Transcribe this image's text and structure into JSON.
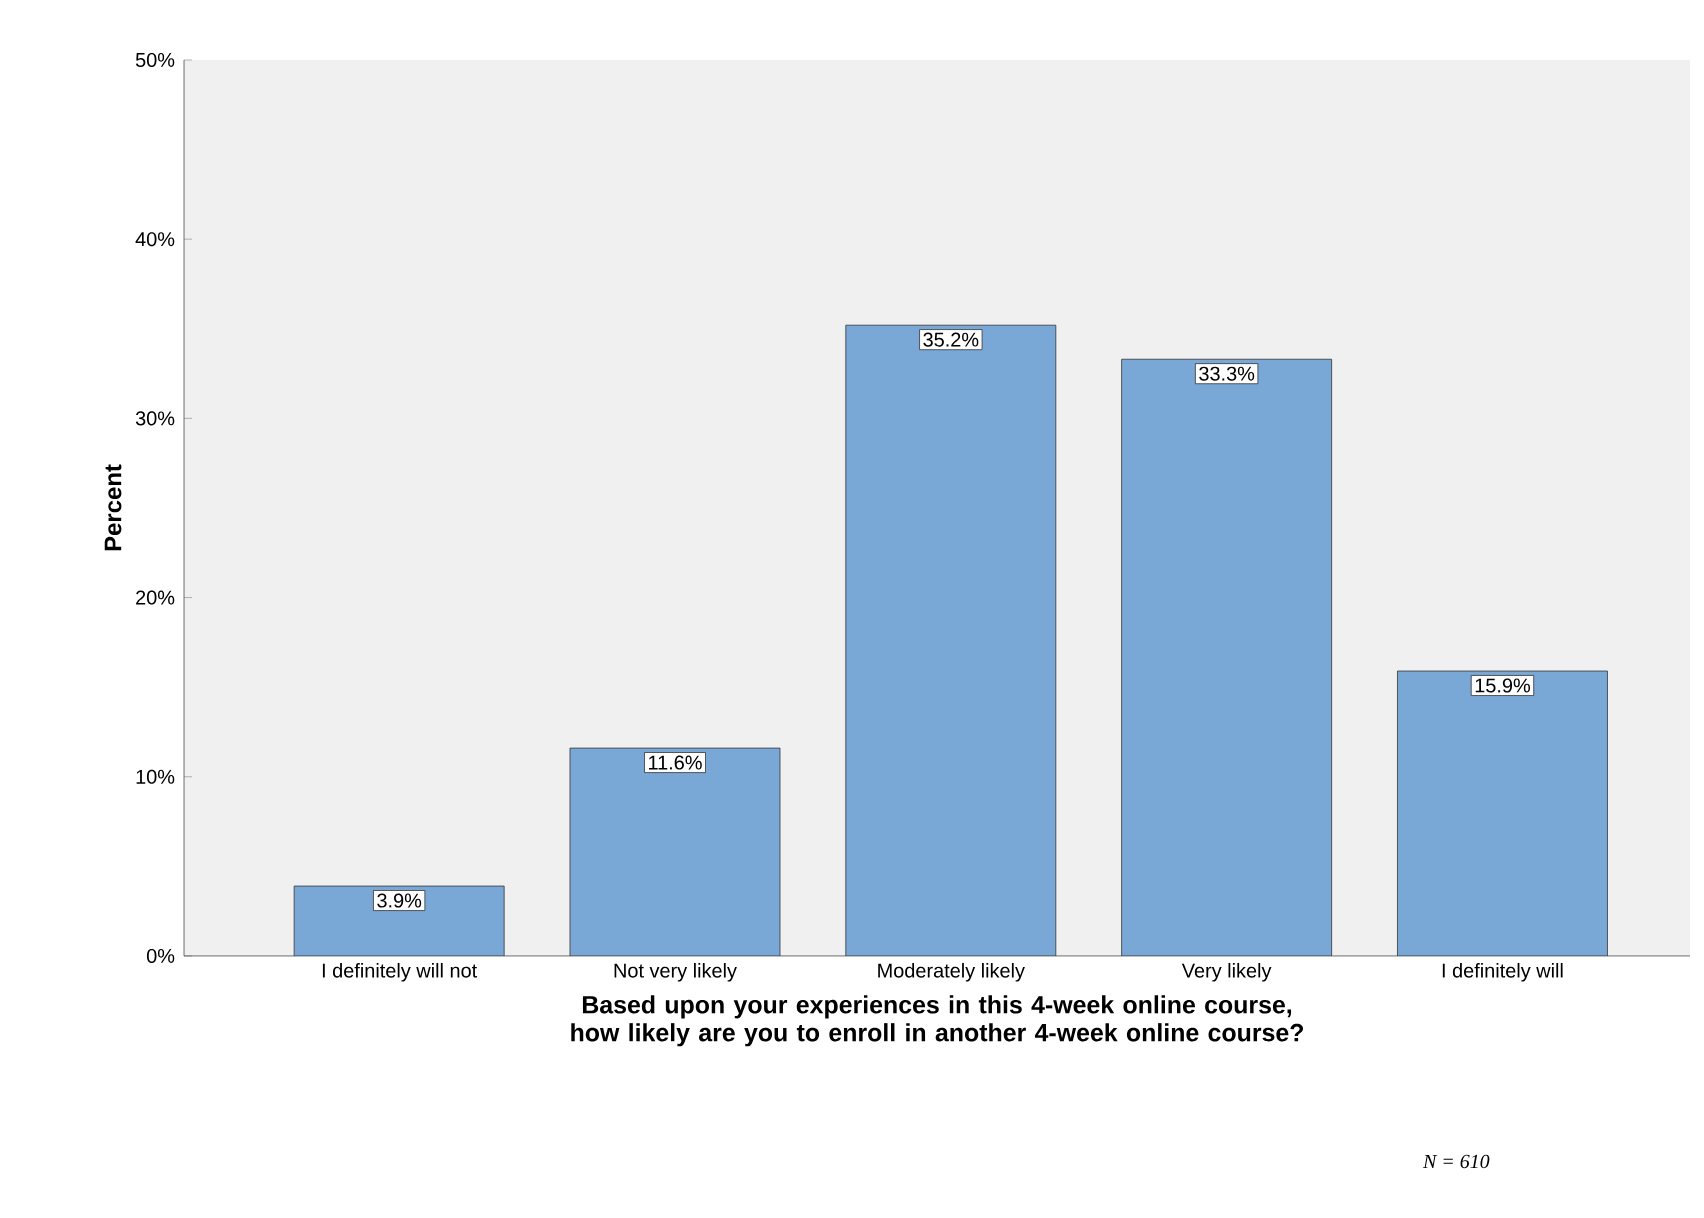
{
  "chart_data": {
    "type": "bar",
    "xlabel": "Based upon your experiences in this 4-week online course, how likely are you to enroll in another 4-week online course?",
    "ylabel": "Percent",
    "categories": [
      "I definitely will not",
      "Not very likely",
      "Moderately likely",
      "Very likely",
      "I definitely will"
    ],
    "values": [
      3.9,
      11.6,
      35.2,
      33.3,
      15.9
    ],
    "value_labels": [
      "3.9%",
      "11.6%",
      "35.2%",
      "33.3%",
      "15.9%"
    ],
    "color": "#7aa8d6",
    "ylim": [
      0,
      50
    ],
    "yticks": [
      {
        "value": 0,
        "label": "0%"
      },
      {
        "value": 10,
        "label": "10%"
      },
      {
        "value": 20,
        "label": "20%"
      },
      {
        "value": 30,
        "label": "30%"
      },
      {
        "value": 40,
        "label": "40%"
      },
      {
        "value": 50,
        "label": "50%"
      }
    ],
    "grid": false,
    "annotations": [
      "N = 610"
    ]
  }
}
